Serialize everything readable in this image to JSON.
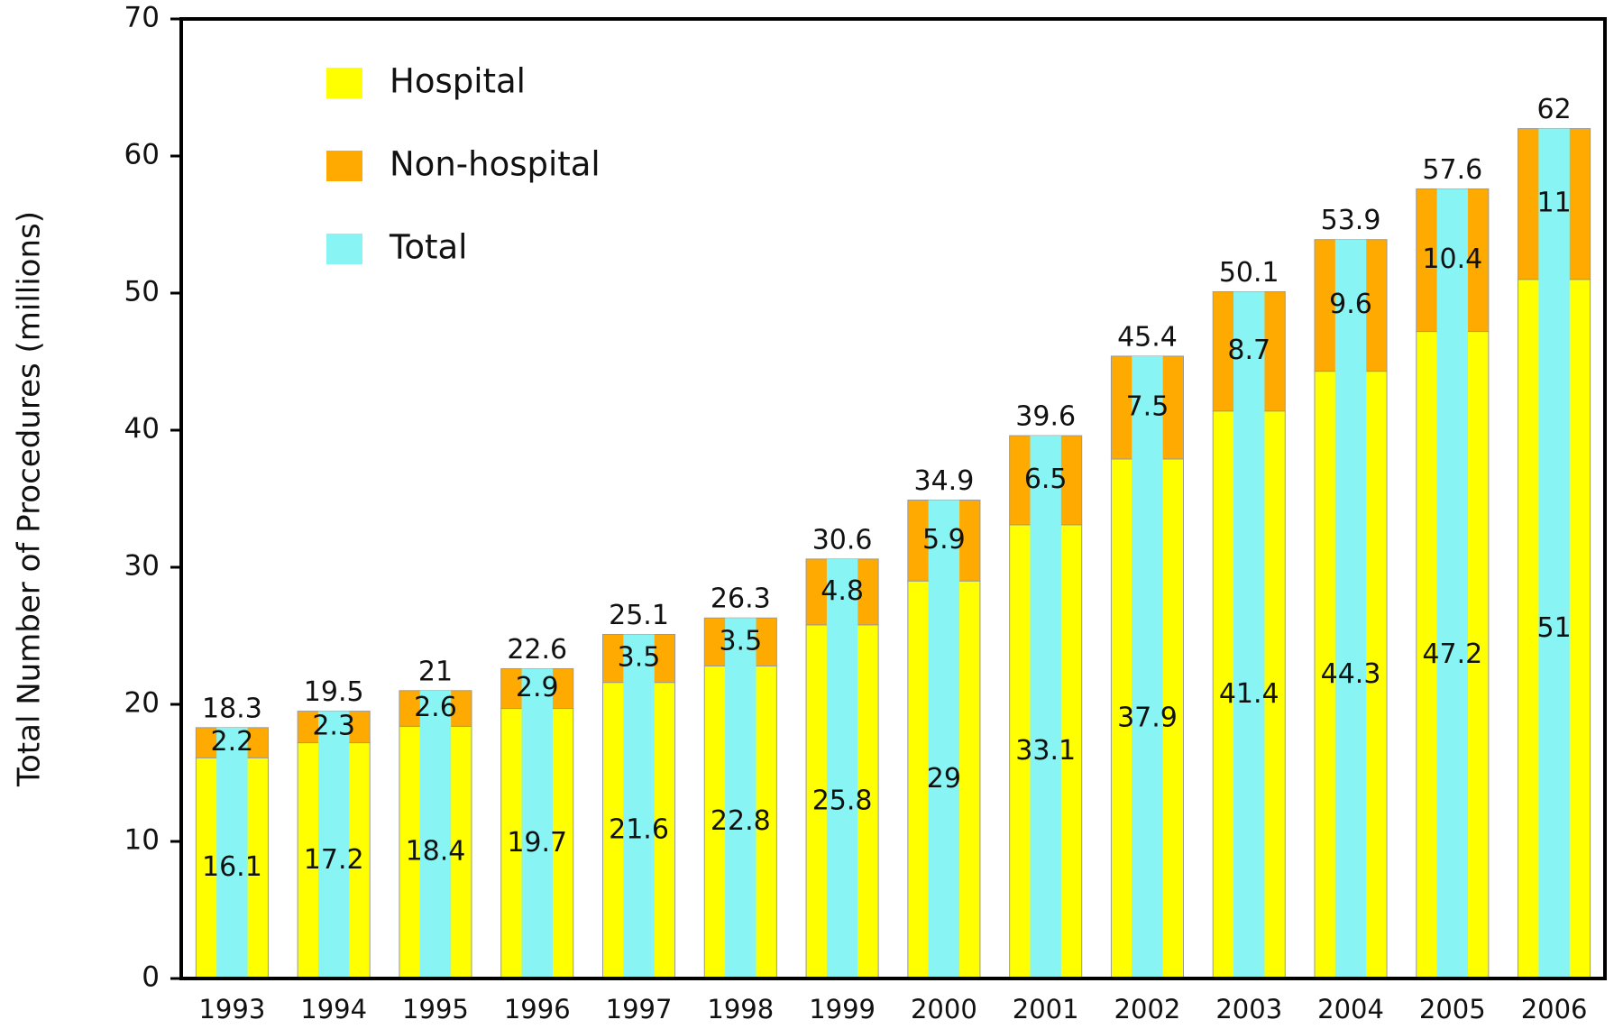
{
  "chart_data": {
    "type": "bar",
    "stacked": true,
    "ylabel": "Total Number of Procedures (millions)",
    "categories": [
      "1993",
      "1994",
      "1995",
      "1996",
      "1997",
      "1998",
      "1999",
      "2000",
      "2001",
      "2002",
      "2003",
      "2004",
      "2005",
      "2006"
    ],
    "series": [
      {
        "name": "Hospital",
        "color": "#ffff00",
        "values": [
          16.1,
          17.2,
          18.4,
          19.7,
          21.6,
          22.8,
          25.8,
          29,
          33.1,
          37.9,
          41.4,
          44.3,
          47.2,
          51
        ]
      },
      {
        "name": "Non-hospital",
        "color": "#ffaa00",
        "values": [
          2.2,
          2.3,
          2.6,
          2.9,
          3.5,
          3.5,
          4.8,
          5.9,
          6.5,
          7.5,
          8.7,
          9.6,
          10.4,
          11
        ]
      },
      {
        "name": "Total",
        "color": "#88f4f4",
        "values": [
          18.3,
          19.5,
          21,
          22.6,
          25.1,
          26.3,
          30.6,
          34.9,
          39.6,
          45.4,
          50.1,
          53.9,
          57.6,
          62
        ]
      }
    ],
    "ylim": [
      0,
      70
    ],
    "yticks": [
      0,
      10,
      20,
      30,
      40,
      50,
      60,
      70
    ],
    "grid": false,
    "legend": "upper left"
  }
}
